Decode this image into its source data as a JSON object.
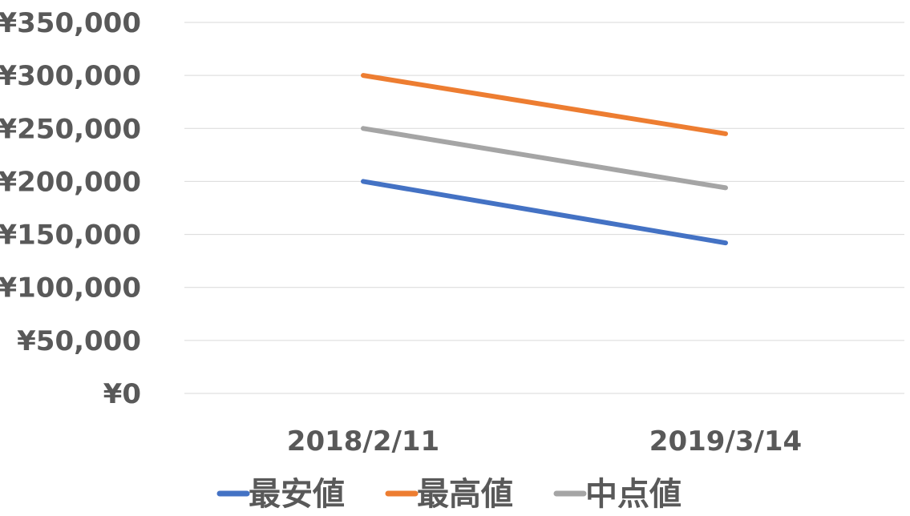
{
  "chart_data": {
    "type": "line",
    "title": "",
    "xlabel": "",
    "ylabel": "",
    "categories": [
      "2018/2/11",
      "2019/3/14"
    ],
    "series": [
      {
        "name": "最安値",
        "values": [
          200000,
          142000
        ],
        "color": "#4472C4"
      },
      {
        "name": "最高値",
        "values": [
          300000,
          245000
        ],
        "color": "#ED7D31"
      },
      {
        "name": "中点値",
        "values": [
          250000,
          194000
        ],
        "color": "#A5A5A5"
      }
    ],
    "ylim": [
      0,
      350000
    ],
    "y_ticks": [
      {
        "value": 0,
        "label": "¥0"
      },
      {
        "value": 50000,
        "label": "¥50,000"
      },
      {
        "value": 100000,
        "label": "¥100,000"
      },
      {
        "value": 150000,
        "label": "¥150,000"
      },
      {
        "value": 200000,
        "label": "¥200,000"
      },
      {
        "value": 250000,
        "label": "¥250,000"
      },
      {
        "value": 300000,
        "label": "¥300,000"
      },
      {
        "value": 350000,
        "label": "¥350,000"
      }
    ],
    "grid": true,
    "legend_position": "bottom",
    "colors": {
      "gridline": "#D9D9D9",
      "text": "#595959"
    }
  }
}
